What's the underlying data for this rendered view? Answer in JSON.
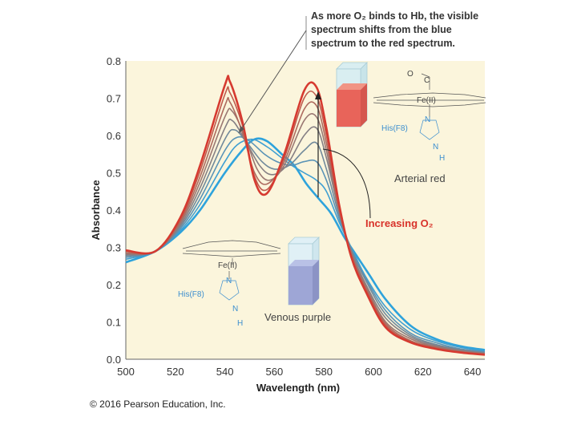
{
  "chart_data": {
    "type": "line",
    "xlabel": "Wavelength (nm)",
    "ylabel": "Absorbance",
    "xlim": [
      500,
      645
    ],
    "ylim": [
      0.0,
      0.8
    ],
    "x_ticks": [
      "500",
      "520",
      "540",
      "560",
      "580",
      "600",
      "620",
      "640"
    ],
    "y_ticks": [
      "0.0",
      "0.1",
      "0.2",
      "0.3",
      "0.4",
      "0.5",
      "0.6",
      "0.7",
      "0.8"
    ],
    "series_colors": [
      "#2ea3dc",
      "#3f9fd2",
      "#5a93b6",
      "#70899b",
      "#857f84",
      "#9a7772",
      "#ad6a5e",
      "#bf5a4c",
      "#d63a30"
    ],
    "series": [
      {
        "values": [
          [
            500,
            0.26
          ],
          [
            512,
            0.29
          ],
          [
            522,
            0.34
          ],
          [
            530,
            0.4
          ],
          [
            540,
            0.5
          ],
          [
            547,
            0.56
          ],
          [
            552,
            0.59
          ],
          [
            557,
            0.585
          ],
          [
            563,
            0.55
          ],
          [
            568,
            0.52
          ],
          [
            573,
            0.47
          ],
          [
            578,
            0.43
          ],
          [
            583,
            0.39
          ],
          [
            588,
            0.33
          ],
          [
            592,
            0.29
          ],
          [
            598,
            0.23
          ],
          [
            605,
            0.16
          ],
          [
            615,
            0.09
          ],
          [
            625,
            0.055
          ],
          [
            635,
            0.035
          ],
          [
            645,
            0.025
          ]
        ]
      },
      {
        "values": [
          [
            500,
            0.268
          ],
          [
            512,
            0.29
          ],
          [
            522,
            0.345
          ],
          [
            530,
            0.415
          ],
          [
            540,
            0.53
          ],
          [
            545,
            0.575
          ],
          [
            551,
            0.59
          ],
          [
            557,
            0.57
          ],
          [
            562,
            0.545
          ],
          [
            567,
            0.52
          ],
          [
            572,
            0.5
          ],
          [
            577,
            0.48
          ],
          [
            581,
            0.45
          ],
          [
            586,
            0.37
          ],
          [
            591,
            0.3
          ],
          [
            597,
            0.22
          ],
          [
            605,
            0.14
          ],
          [
            615,
            0.08
          ],
          [
            625,
            0.05
          ],
          [
            635,
            0.032
          ],
          [
            645,
            0.022
          ]
        ]
      },
      {
        "values": [
          [
            500,
            0.273
          ],
          [
            512,
            0.29
          ],
          [
            522,
            0.35
          ],
          [
            530,
            0.43
          ],
          [
            540,
            0.56
          ],
          [
            545,
            0.595
          ],
          [
            550,
            0.585
          ],
          [
            556,
            0.55
          ],
          [
            561,
            0.53
          ],
          [
            567,
            0.52
          ],
          [
            572,
            0.53
          ],
          [
            577,
            0.53
          ],
          [
            581,
            0.48
          ],
          [
            586,
            0.38
          ],
          [
            591,
            0.295
          ],
          [
            597,
            0.215
          ],
          [
            605,
            0.13
          ],
          [
            615,
            0.07
          ],
          [
            625,
            0.045
          ],
          [
            635,
            0.028
          ],
          [
            645,
            0.02
          ]
        ]
      },
      {
        "values": [
          [
            500,
            0.277
          ],
          [
            512,
            0.29
          ],
          [
            522,
            0.355
          ],
          [
            530,
            0.445
          ],
          [
            540,
            0.59
          ],
          [
            544,
            0.615
          ],
          [
            549,
            0.58
          ],
          [
            555,
            0.53
          ],
          [
            560,
            0.51
          ],
          [
            566,
            0.52
          ],
          [
            572,
            0.56
          ],
          [
            577,
            0.58
          ],
          [
            581,
            0.51
          ],
          [
            586,
            0.39
          ],
          [
            591,
            0.295
          ],
          [
            597,
            0.21
          ],
          [
            605,
            0.12
          ],
          [
            615,
            0.065
          ],
          [
            625,
            0.04
          ],
          [
            635,
            0.026
          ],
          [
            645,
            0.018
          ]
        ]
      },
      {
        "values": [
          [
            500,
            0.28
          ],
          [
            512,
            0.29
          ],
          [
            522,
            0.36
          ],
          [
            530,
            0.46
          ],
          [
            540,
            0.62
          ],
          [
            543,
            0.64
          ],
          [
            548,
            0.59
          ],
          [
            554,
            0.52
          ],
          [
            559,
            0.495
          ],
          [
            565,
            0.52
          ],
          [
            572,
            0.6
          ],
          [
            577,
            0.62
          ],
          [
            581,
            0.54
          ],
          [
            586,
            0.4
          ],
          [
            591,
            0.29
          ],
          [
            597,
            0.2
          ],
          [
            605,
            0.11
          ],
          [
            615,
            0.06
          ],
          [
            625,
            0.037
          ],
          [
            635,
            0.024
          ],
          [
            645,
            0.016
          ]
        ]
      },
      {
        "values": [
          [
            500,
            0.283
          ],
          [
            512,
            0.29
          ],
          [
            522,
            0.365
          ],
          [
            530,
            0.475
          ],
          [
            540,
            0.65
          ],
          [
            543,
            0.665
          ],
          [
            548,
            0.6
          ],
          [
            553,
            0.51
          ],
          [
            558,
            0.48
          ],
          [
            564,
            0.52
          ],
          [
            572,
            0.64
          ],
          [
            577,
            0.65
          ],
          [
            581,
            0.56
          ],
          [
            586,
            0.4
          ],
          [
            591,
            0.285
          ],
          [
            597,
            0.195
          ],
          [
            605,
            0.1
          ],
          [
            615,
            0.055
          ],
          [
            625,
            0.034
          ],
          [
            635,
            0.022
          ],
          [
            645,
            0.015
          ]
        ]
      },
      {
        "values": [
          [
            500,
            0.286
          ],
          [
            512,
            0.29
          ],
          [
            522,
            0.37
          ],
          [
            530,
            0.49
          ],
          [
            540,
            0.68
          ],
          [
            542,
            0.69
          ],
          [
            547,
            0.61
          ],
          [
            552,
            0.5
          ],
          [
            557,
            0.47
          ],
          [
            564,
            0.53
          ],
          [
            572,
            0.67
          ],
          [
            577,
            0.68
          ],
          [
            581,
            0.58
          ],
          [
            586,
            0.41
          ],
          [
            591,
            0.28
          ],
          [
            597,
            0.19
          ],
          [
            605,
            0.095
          ],
          [
            615,
            0.05
          ],
          [
            625,
            0.032
          ],
          [
            635,
            0.02
          ],
          [
            645,
            0.014
          ]
        ]
      },
      {
        "values": [
          [
            500,
            0.29
          ],
          [
            512,
            0.29
          ],
          [
            522,
            0.375
          ],
          [
            530,
            0.505
          ],
          [
            540,
            0.71
          ],
          [
            542,
            0.715
          ],
          [
            547,
            0.63
          ],
          [
            552,
            0.49
          ],
          [
            557,
            0.455
          ],
          [
            564,
            0.54
          ],
          [
            572,
            0.7
          ],
          [
            577,
            0.705
          ],
          [
            581,
            0.6
          ],
          [
            586,
            0.41
          ],
          [
            591,
            0.28
          ],
          [
            597,
            0.185
          ],
          [
            605,
            0.09
          ],
          [
            615,
            0.047
          ],
          [
            625,
            0.03
          ],
          [
            635,
            0.019
          ],
          [
            645,
            0.013
          ]
        ]
      },
      {
        "values": [
          [
            500,
            0.292
          ],
          [
            512,
            0.29
          ],
          [
            522,
            0.38
          ],
          [
            530,
            0.52
          ],
          [
            540,
            0.735
          ],
          [
            542,
            0.745
          ],
          [
            547,
            0.64
          ],
          [
            552,
            0.48
          ],
          [
            557,
            0.445
          ],
          [
            564,
            0.55
          ],
          [
            572,
            0.72
          ],
          [
            577,
            0.73
          ],
          [
            581,
            0.62
          ],
          [
            586,
            0.42
          ],
          [
            591,
            0.275
          ],
          [
            597,
            0.18
          ],
          [
            605,
            0.085
          ],
          [
            615,
            0.045
          ],
          [
            625,
            0.028
          ],
          [
            635,
            0.018
          ],
          [
            645,
            0.012
          ]
        ]
      }
    ],
    "annotations": {
      "top_note": [
        "As more O₂ binds to Hb, the visible",
        "spectrum shifts from the blue",
        "spectrum to the red spectrum."
      ],
      "arterial": "Arterial red",
      "increasing": "Increasing O₂",
      "venous": "Venous purple"
    }
  },
  "chemistry": {
    "oxy_o": "O",
    "oxy_c": "C",
    "oxy_fe": "Fe(II)",
    "oxy_his": "His(F8)",
    "oxy_n": "N",
    "oxy_nh": "N",
    "oxy_h": "H",
    "deoxy_fe": "Fe(II)",
    "deoxy_his": "His(F8)",
    "deoxy_n": "N",
    "deoxy_nh": "N",
    "deoxy_h": "H"
  },
  "footer": {
    "copyright": "© 2016 Pearson Education, Inc."
  },
  "colors": {
    "plot_bg": "#fbf5dc",
    "arterial_red": "#e8645a",
    "venous_purple": "#9ea6d6",
    "increasing_label": "#d8322a"
  }
}
